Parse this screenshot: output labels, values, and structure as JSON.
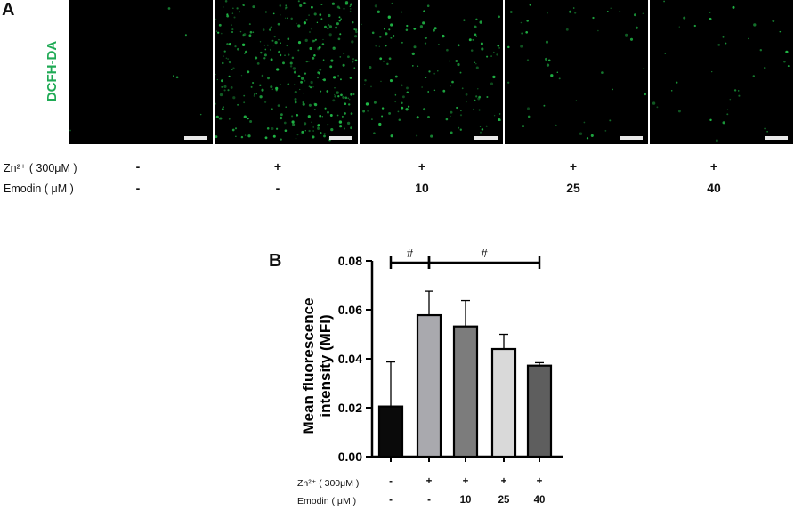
{
  "panel_a": {
    "label": "A",
    "dye_label": "DCFH-DA",
    "green_color": "#22c24a",
    "images": [
      {
        "condition": "control",
        "spot_density": 0.02
      },
      {
        "condition": "zn",
        "spot_density": 1.0
      },
      {
        "condition": "zn_emodin_10",
        "spot_density": 0.45
      },
      {
        "condition": "zn_emodin_25",
        "spot_density": 0.15
      },
      {
        "condition": "zn_emodin_40",
        "spot_density": 0.12
      }
    ],
    "zn_label": "Zn²⁺ ( 300μM )",
    "emodin_label": "Emodin ( μM )",
    "zn_values": [
      "-",
      "+",
      "+",
      "+",
      "+"
    ],
    "emodin_values": [
      "-",
      "-",
      "10",
      "25",
      "40"
    ]
  },
  "panel_b": {
    "label": "B",
    "zn_label": "Zn²⁺ ( 300μM )",
    "emodin_label": "Emodin ( μM )",
    "zn_values": [
      "-",
      "+",
      "+",
      "+",
      "+"
    ],
    "emodin_values": [
      "-",
      "-",
      "10",
      "25",
      "40"
    ],
    "significance": [
      {
        "from": 0,
        "to": 1,
        "label": "#"
      },
      {
        "from": 1,
        "to": 4,
        "label": "#"
      }
    ]
  },
  "chart_data": {
    "type": "bar",
    "categories": [
      "control",
      "Zn",
      "Zn+Emodin 10",
      "Zn+Emodin 25",
      "Zn+Emodin 40"
    ],
    "values": [
      0.0205,
      0.0578,
      0.0532,
      0.044,
      0.0372
    ],
    "errors": [
      0.0182,
      0.0098,
      0.0106,
      0.006,
      0.0012
    ],
    "bar_colors": [
      "#0a0a0a",
      "#a9a9ae",
      "#7c7c7c",
      "#d9d9d9",
      "#5e5e5e"
    ],
    "ylabel_line1": "Mean fluorescence",
    "ylabel_line2": "intensity (MFI)",
    "ylim": [
      0,
      0.08
    ],
    "yticks": [
      "0.00",
      "0.02",
      "0.04",
      "0.06",
      "0.08"
    ],
    "grid": false
  }
}
